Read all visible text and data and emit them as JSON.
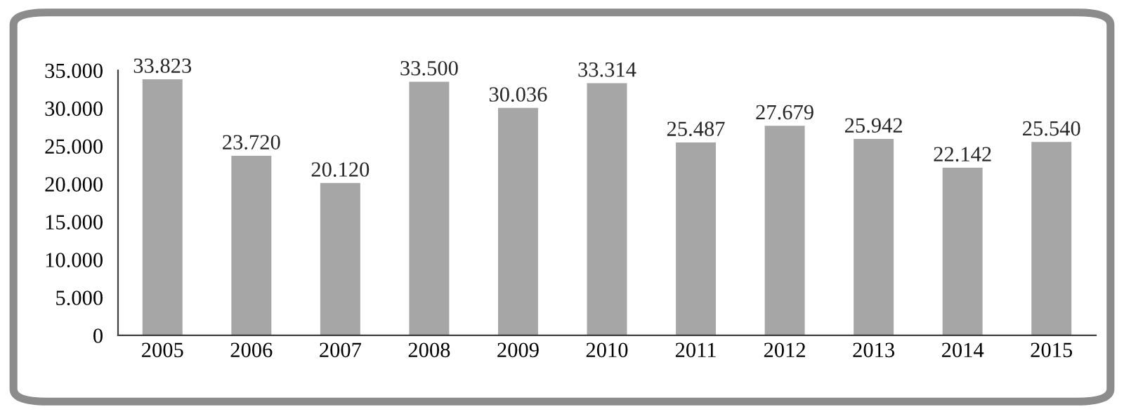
{
  "chart_data": {
    "type": "bar",
    "categories": [
      "2005",
      "2006",
      "2007",
      "2008",
      "2009",
      "2010",
      "2011",
      "2012",
      "2013",
      "2014",
      "2015"
    ],
    "values": [
      33823,
      23720,
      20120,
      33500,
      30036,
      33314,
      25487,
      27679,
      25942,
      22142,
      25540
    ],
    "value_labels": [
      "33.823",
      "23.720",
      "20.120",
      "33.500",
      "30.036",
      "33.314",
      "25.487",
      "27.679",
      "25.942",
      "22.142",
      "25.540"
    ],
    "color": "#a6a6a6",
    "ylim": [
      0,
      35000
    ],
    "yticks": [
      {
        "value": 0,
        "label": "0"
      },
      {
        "value": 5000,
        "label": "5.000"
      },
      {
        "value": 10000,
        "label": "10.000"
      },
      {
        "value": 15000,
        "label": "15.000"
      },
      {
        "value": 20000,
        "label": "20.000"
      },
      {
        "value": 25000,
        "label": "25.000"
      },
      {
        "value": 30000,
        "label": "30.000"
      },
      {
        "value": 35000,
        "label": "35.000"
      }
    ],
    "grid": false,
    "legend": false
  }
}
